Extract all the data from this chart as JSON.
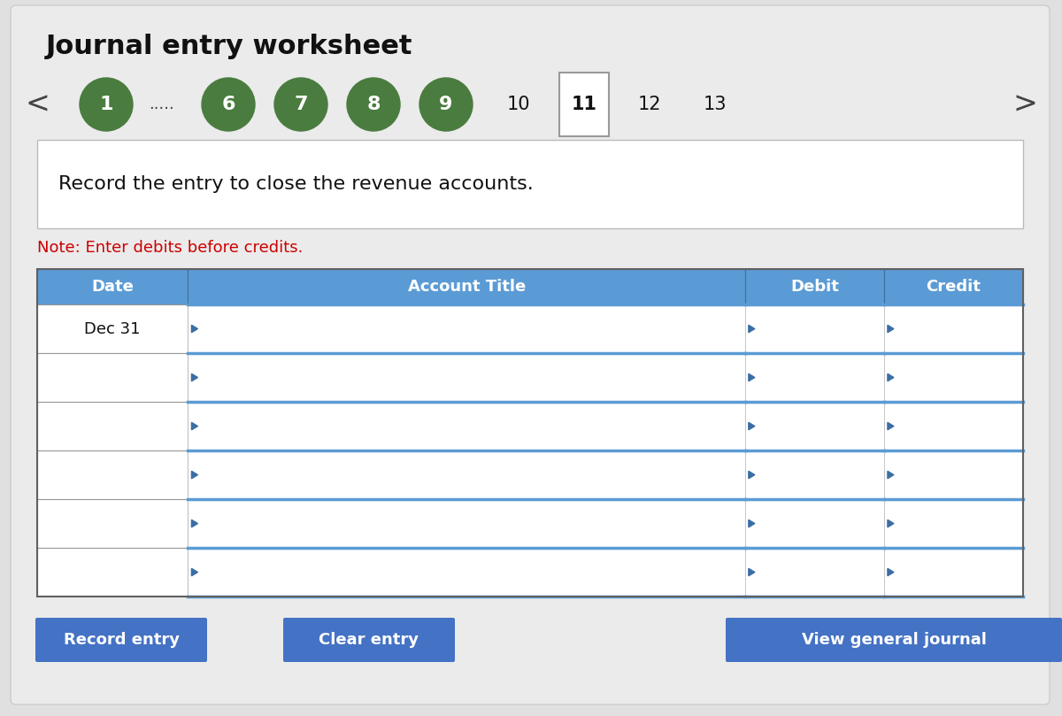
{
  "title": "Journal entry worksheet",
  "title_fontsize": 22,
  "bg_color": "#e0e0e0",
  "white": "#ffffff",
  "green_circle_color": "#4a7c3f",
  "nav_numbers_green": [
    "1",
    "6",
    "7",
    "8",
    "9"
  ],
  "nav_numbers_plain": [
    "10",
    "11",
    "12",
    "13"
  ],
  "active_number": "11",
  "dots": ".....",
  "instruction_text": "Record the entry to close the revenue accounts.",
  "note_text": "Note: Enter debits before credits.",
  "note_color": "#cc0000",
  "header_bg": "#5b9bd5",
  "header_text_color": "#ffffff",
  "header_labels": [
    "Date",
    "Account Title",
    "Debit",
    "Credit"
  ],
  "date_cell_text": "Dec 31",
  "num_data_rows": 6,
  "button_bg": "#4472c4",
  "button_text_color": "#ffffff",
  "button_labels": [
    "Record entry",
    "Clear entry",
    "View general journal"
  ],
  "table_border_color": "#606060",
  "row_separator_color": "#5b9bd5",
  "cell_arrow_color": "#3a6ea5"
}
